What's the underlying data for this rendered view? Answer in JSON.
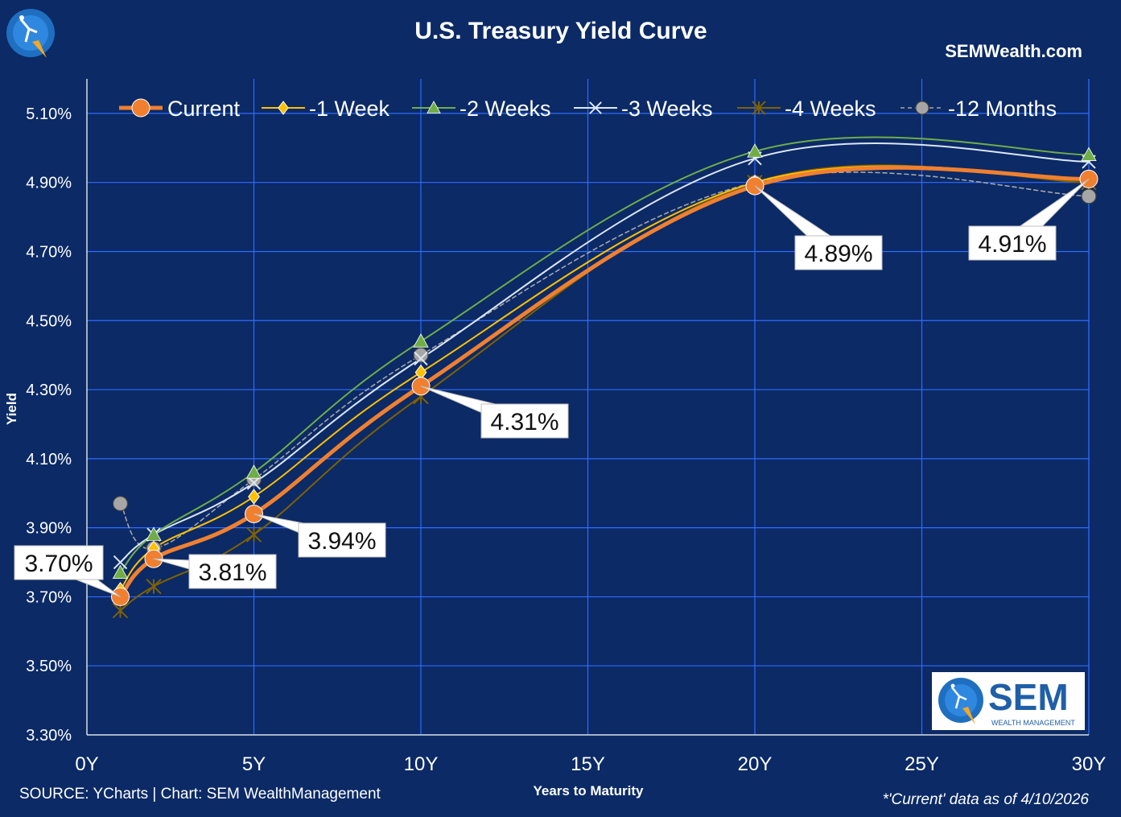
{
  "header": {
    "title": "U.S. Treasury Yield Curve",
    "site": "SEMWealth.com"
  },
  "footer": {
    "source": "SOURCE: YCharts | Chart: SEM WealthManagement",
    "note": "*'Current' data as of 4/10/2026"
  },
  "logo": {
    "big_text": "SEM",
    "small_text": "WEALTH MANAGEMENT"
  },
  "colors": {
    "background": "#0b2a66",
    "grid": "#2f6bff",
    "current": "#f08030",
    "week1": "#ffc000",
    "week2": "#70ad47",
    "week3": "#dce6f5",
    "week4": "#806000",
    "month12": "#a6a6a6"
  },
  "chart_data": {
    "type": "line",
    "title": "U.S. Treasury Yield Curve",
    "xlabel": "Years to Maturity",
    "ylabel": "Yield",
    "xlim": [
      0,
      30
    ],
    "ylim": [
      3.3,
      5.2
    ],
    "x_ticks": [
      0,
      5,
      10,
      15,
      20,
      25,
      30
    ],
    "x_tick_labels": [
      "0Y",
      "5Y",
      "10Y",
      "15Y",
      "20Y",
      "25Y",
      "30Y"
    ],
    "y_ticks": [
      3.3,
      3.5,
      3.7,
      3.9,
      4.1,
      4.3,
      4.5,
      4.7,
      4.9,
      5.1
    ],
    "y_tick_labels": [
      "3.30%",
      "3.50%",
      "3.70%",
      "3.90%",
      "4.10%",
      "4.30%",
      "4.50%",
      "4.70%",
      "4.90%",
      "5.10%"
    ],
    "grid": true,
    "legend_position": "top",
    "x": [
      1,
      2,
      5,
      10,
      20,
      30
    ],
    "series": [
      {
        "name": "Current",
        "key": "current",
        "marker": "circle",
        "values": [
          3.7,
          3.81,
          3.94,
          4.31,
          4.89,
          4.91
        ]
      },
      {
        "name": "-1 Week",
        "key": "week1",
        "marker": "diamond",
        "values": [
          3.72,
          3.84,
          3.99,
          4.35,
          4.9,
          4.91
        ]
      },
      {
        "name": "-2 Weeks",
        "key": "week2",
        "marker": "triangle",
        "values": [
          3.77,
          3.88,
          4.06,
          4.44,
          4.99,
          4.98
        ]
      },
      {
        "name": "-3 Weeks",
        "key": "week3",
        "marker": "x",
        "values": [
          3.8,
          3.88,
          4.03,
          4.39,
          4.97,
          4.96
        ]
      },
      {
        "name": "-4 Weeks",
        "key": "week4",
        "marker": "star",
        "values": [
          3.66,
          3.73,
          3.88,
          4.28,
          4.9,
          4.9
        ]
      },
      {
        "name": "-12 Months",
        "key": "month12",
        "marker": "circle-gray",
        "values": [
          3.97,
          3.84,
          4.04,
          4.4,
          4.9,
          4.86
        ]
      }
    ],
    "callouts": [
      "3.70%",
      "3.81%",
      "3.94%",
      "4.31%",
      "4.89%",
      "4.91%"
    ]
  }
}
